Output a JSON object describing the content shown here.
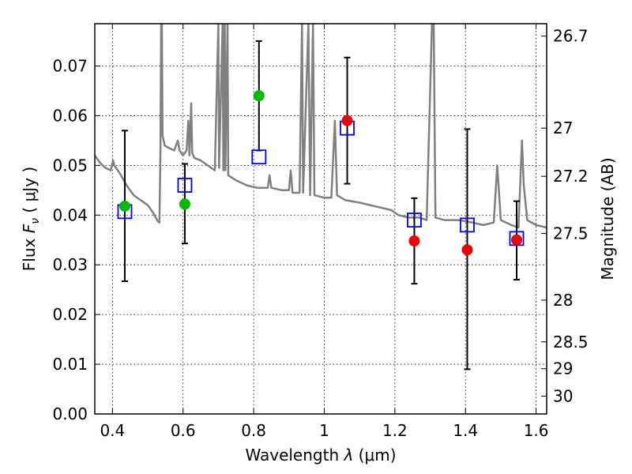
{
  "chart_data": {
    "type": "scatter",
    "title": "",
    "xlabel_prefix": "Wavelength  ",
    "xlabel_symbol": "λ",
    "xlabel_unit": " (μm)",
    "ylabel_prefix": "Flux  ",
    "ylabel_symbol": "F",
    "ylabel_subscript": "ν",
    "ylabel_unit": "  ( μJy )",
    "y2label": "Magnitude (AB)",
    "xlim": [
      0.35,
      1.63
    ],
    "ylim": [
      0.0,
      0.0785
    ],
    "grid": true,
    "x_ticks": [
      0.4,
      0.6,
      0.8,
      1.0,
      1.2,
      1.4,
      1.6
    ],
    "x_tick_labels": [
      "0.4",
      "0.6",
      "0.8",
      "1",
      "1.2",
      "1.4",
      "1.6"
    ],
    "y_ticks": [
      0.0,
      0.01,
      0.02,
      0.03,
      0.04,
      0.05,
      0.06,
      0.07
    ],
    "y_tick_labels": [
      "0.00",
      "0.01",
      "0.02",
      "0.03",
      "0.04",
      "0.05",
      "0.06",
      "0.07"
    ],
    "y2_ticks": [
      {
        "label": "26.7",
        "flux": 0.076
      },
      {
        "label": "27",
        "flux": 0.0575
      },
      {
        "label": "27.2",
        "flux": 0.0478
      },
      {
        "label": "27.5",
        "flux": 0.0363
      },
      {
        "label": "28",
        "flux": 0.0229
      },
      {
        "label": "28.5",
        "flux": 0.0145
      },
      {
        "label": "29",
        "flux": 0.0091
      },
      {
        "label": "30",
        "flux": 0.0036
      }
    ],
    "series": [
      {
        "role": "model",
        "color": "#808080",
        "points": [
          [
            0.35,
            0.052
          ],
          [
            0.365,
            0.0505
          ],
          [
            0.38,
            0.0495
          ],
          [
            0.395,
            0.049
          ],
          [
            0.402,
            0.051
          ],
          [
            0.405,
            0.05
          ],
          [
            0.42,
            0.0485
          ],
          [
            0.44,
            0.046
          ],
          [
            0.46,
            0.044
          ],
          [
            0.48,
            0.043
          ],
          [
            0.5,
            0.042
          ],
          [
            0.515,
            0.0405
          ],
          [
            0.528,
            0.0388
          ],
          [
            0.533,
            0.0385
          ],
          [
            0.536,
            0.053
          ],
          [
            0.538,
            0.0785
          ],
          [
            0.54,
            0.0785
          ],
          [
            0.542,
            0.056
          ],
          [
            0.548,
            0.054
          ],
          [
            0.56,
            0.0535
          ],
          [
            0.575,
            0.053
          ],
          [
            0.585,
            0.055
          ],
          [
            0.59,
            0.053
          ],
          [
            0.6,
            0.052
          ],
          [
            0.61,
            0.053
          ],
          [
            0.615,
            0.059
          ],
          [
            0.618,
            0.052
          ],
          [
            0.623,
            0.0625
          ],
          [
            0.626,
            0.0525
          ],
          [
            0.632,
            0.0515
          ],
          [
            0.65,
            0.051
          ],
          [
            0.67,
            0.05
          ],
          [
            0.69,
            0.049
          ],
          [
            0.7,
            0.0785
          ],
          [
            0.702,
            0.0495
          ],
          [
            0.712,
            0.0785
          ],
          [
            0.714,
            0.049
          ],
          [
            0.718,
            0.0785
          ],
          [
            0.72,
            0.049
          ],
          [
            0.726,
            0.0785
          ],
          [
            0.728,
            0.048
          ],
          [
            0.75,
            0.047
          ],
          [
            0.78,
            0.046
          ],
          [
            0.81,
            0.0455
          ],
          [
            0.84,
            0.0455
          ],
          [
            0.845,
            0.048
          ],
          [
            0.85,
            0.0455
          ],
          [
            0.88,
            0.045
          ],
          [
            0.9,
            0.045
          ],
          [
            0.905,
            0.049
          ],
          [
            0.91,
            0.0445
          ],
          [
            0.93,
            0.0445
          ],
          [
            0.937,
            0.0785
          ],
          [
            0.94,
            0.0445
          ],
          [
            0.955,
            0.0785
          ],
          [
            0.96,
            0.044
          ],
          [
            0.968,
            0.0785
          ],
          [
            0.972,
            0.044
          ],
          [
            1.0,
            0.0435
          ],
          [
            1.02,
            0.0435
          ],
          [
            1.03,
            0.059
          ],
          [
            1.036,
            0.044
          ],
          [
            1.06,
            0.043
          ],
          [
            1.1,
            0.0425
          ],
          [
            1.13,
            0.042
          ],
          [
            1.16,
            0.0415
          ],
          [
            1.19,
            0.041
          ],
          [
            1.21,
            0.04
          ],
          [
            1.24,
            0.0395
          ],
          [
            1.27,
            0.0395
          ],
          [
            1.29,
            0.039
          ],
          [
            1.305,
            0.0785
          ],
          [
            1.31,
            0.0785
          ],
          [
            1.315,
            0.0395
          ],
          [
            1.34,
            0.039
          ],
          [
            1.38,
            0.039
          ],
          [
            1.42,
            0.0385
          ],
          [
            1.45,
            0.038
          ],
          [
            1.48,
            0.0385
          ],
          [
            1.49,
            0.05
          ],
          [
            1.495,
            0.0445
          ],
          [
            1.5,
            0.039
          ],
          [
            1.53,
            0.038
          ],
          [
            1.55,
            0.0375
          ],
          [
            1.56,
            0.055
          ],
          [
            1.565,
            0.046
          ],
          [
            1.575,
            0.039
          ],
          [
            1.6,
            0.038
          ],
          [
            1.63,
            0.0375
          ]
        ]
      },
      {
        "role": "model-photometry",
        "marker": "open-square",
        "color": "#0000ff",
        "points": [
          [
            0.435,
            0.0407
          ],
          [
            0.605,
            0.046
          ],
          [
            0.815,
            0.0517
          ],
          [
            1.065,
            0.0575
          ],
          [
            1.255,
            0.039
          ],
          [
            1.405,
            0.038
          ],
          [
            1.545,
            0.0353
          ]
        ]
      },
      {
        "role": "observed",
        "marker": "filled-circle",
        "points": [
          {
            "x": 0.435,
            "y": 0.0418,
            "err_low": 0.0267,
            "err_high": 0.057,
            "color": "#00bb00"
          },
          {
            "x": 0.605,
            "y": 0.0422,
            "err_low": 0.0343,
            "err_high": 0.0503,
            "color": "#00bb00"
          },
          {
            "x": 0.815,
            "y": 0.064,
            "err_low": 0.053,
            "err_high": 0.075,
            "color": "#00bb00"
          },
          {
            "x": 1.065,
            "y": 0.059,
            "err_low": 0.0463,
            "err_high": 0.0717,
            "color": "#ee0000"
          },
          {
            "x": 1.255,
            "y": 0.0348,
            "err_low": 0.0262,
            "err_high": 0.0434,
            "color": "#ee0000"
          },
          {
            "x": 1.405,
            "y": 0.033,
            "err_low": 0.009,
            "err_high": 0.0573,
            "color": "#ee0000"
          },
          {
            "x": 1.545,
            "y": 0.035,
            "err_low": 0.027,
            "err_high": 0.0428,
            "color": "#ee0000"
          }
        ]
      }
    ]
  }
}
